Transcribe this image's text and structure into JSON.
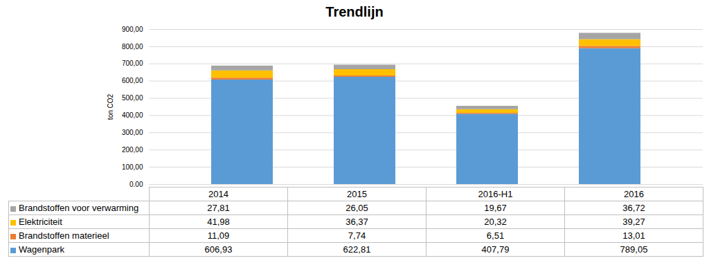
{
  "chart_data": {
    "type": "bar",
    "title": "Trendlijn",
    "stacked": true,
    "grid": true,
    "categories": [
      "2014",
      "2015",
      "2016-H1",
      "2016"
    ],
    "y_label": "ton CO2",
    "ylim": [
      0,
      900
    ],
    "yticks": [
      {
        "value": 0,
        "label": "0,00"
      },
      {
        "value": 100,
        "label": "100,00"
      },
      {
        "value": 200,
        "label": "200,00"
      },
      {
        "value": 300,
        "label": "300,00"
      },
      {
        "value": 400,
        "label": "400,00"
      },
      {
        "value": 500,
        "label": "500,00"
      },
      {
        "value": 600,
        "label": "600,00"
      },
      {
        "value": 700,
        "label": "700,00"
      },
      {
        "value": 800,
        "label": "800,00"
      },
      {
        "value": 900,
        "label": "900,00"
      }
    ],
    "series": [
      {
        "name": "Brandstoffen voor verwarming",
        "color": "#a5a5a5",
        "values": [
          27.81,
          26.05,
          19.67,
          36.72
        ],
        "value_labels": [
          "27,81",
          "26,05",
          "19,67",
          "36,72"
        ]
      },
      {
        "name": "Elektriciteit",
        "color": "#ffc000",
        "values": [
          41.98,
          36.37,
          20.32,
          39.27
        ],
        "value_labels": [
          "41,98",
          "36,37",
          "20,32",
          "39,27"
        ]
      },
      {
        "name": "Brandstoffen materieel",
        "color": "#ed7d31",
        "values": [
          11.09,
          7.74,
          6.51,
          13.01
        ],
        "value_labels": [
          "11,09",
          "7,74",
          "6,51",
          "13,01"
        ]
      },
      {
        "name": "Wagenpark",
        "color": "#5b9bd5",
        "values": [
          606.93,
          622.81,
          407.79,
          789.05
        ],
        "value_labels": [
          "606,93",
          "622,81",
          "407,79",
          "789,05"
        ]
      }
    ]
  }
}
